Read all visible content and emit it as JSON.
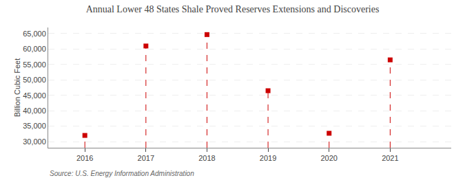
{
  "chart_data": {
    "type": "lollipop",
    "title": "Annual Lower 48 States Shale Proved Reserves Extensions and Discoveries",
    "ylabel": "Billion Cubic Feet",
    "x": [
      2016,
      2017,
      2018,
      2019,
      2020,
      2021
    ],
    "values": [
      32000,
      61000,
      64700,
      46500,
      32700,
      56500
    ],
    "color": "#cc0000",
    "marker": "square",
    "line_style": "dashed",
    "xlim": [
      2015.4,
      2022.0
    ],
    "xticks": [
      2016,
      2017,
      2018,
      2019,
      2020,
      2021
    ],
    "ylim": [
      28000,
      67000
    ],
    "yticks": [
      {
        "value": 30000,
        "label": "30,000"
      },
      {
        "value": 35000,
        "label": "35,000"
      },
      {
        "value": 40000,
        "label": "40,000"
      },
      {
        "value": 45000,
        "label": "45,000"
      },
      {
        "value": 50000,
        "label": "50,000"
      },
      {
        "value": 55000,
        "label": "55,000"
      },
      {
        "value": 60000,
        "label": "60,000"
      },
      {
        "value": 65000,
        "label": "65,000"
      }
    ],
    "grid": true,
    "annotations": [
      "Source: U.S. Energy Information Administration"
    ]
  }
}
